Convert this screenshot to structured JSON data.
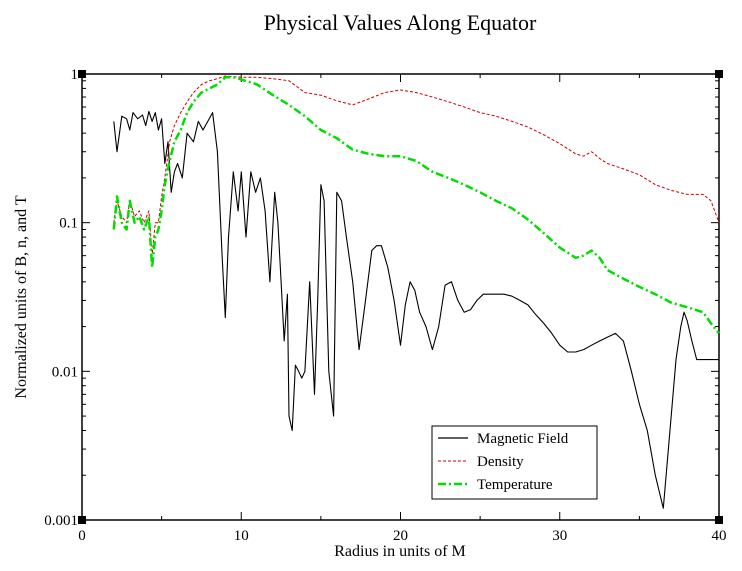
{
  "chart_data": {
    "type": "line",
    "title": "Physical Values Along Equator",
    "xlabel": "Radius in units of M",
    "ylabel": "Normalized units of B, n, and T",
    "xlim": [
      0,
      40
    ],
    "ylim": [
      0.001,
      1
    ],
    "yscale": "log",
    "x_ticks": [
      0,
      10,
      20,
      30,
      40
    ],
    "x_tick_labels": [
      "0",
      "10",
      "20",
      "30",
      "40"
    ],
    "y_ticks": [
      0.001,
      0.01,
      0.1,
      1
    ],
    "y_tick_labels": [
      "0.001",
      "0.01",
      "0.1",
      "1"
    ],
    "legend_position": "bottom-right",
    "series": [
      {
        "name": "Magnetic Field",
        "color": "#000000",
        "style": "solid",
        "x": [
          2.0,
          2.2,
          2.5,
          2.8,
          3.0,
          3.2,
          3.5,
          3.8,
          4.0,
          4.2,
          4.4,
          4.6,
          4.8,
          5.0,
          5.2,
          5.4,
          5.6,
          5.8,
          6.0,
          6.3,
          6.6,
          7.0,
          7.3,
          7.6,
          7.9,
          8.2,
          8.5,
          8.8,
          9.0,
          9.2,
          9.5,
          9.8,
          10.0,
          10.3,
          10.6,
          10.9,
          11.2,
          11.5,
          11.8,
          12.1,
          12.3,
          12.5,
          12.7,
          12.9,
          13.0,
          13.2,
          13.4,
          13.6,
          13.8,
          14.0,
          14.3,
          14.6,
          14.8,
          15.0,
          15.2,
          15.5,
          15.8,
          16.0,
          16.3,
          16.6,
          17.0,
          17.4,
          17.8,
          18.2,
          18.5,
          18.8,
          19.2,
          19.6,
          20.0,
          20.3,
          20.6,
          20.9,
          21.2,
          21.6,
          22.0,
          22.4,
          22.8,
          23.2,
          23.6,
          24.0,
          24.4,
          24.8,
          25.2,
          25.6,
          26.0,
          26.5,
          27.0,
          27.5,
          28.0,
          28.5,
          29.0,
          29.5,
          30.0,
          30.5,
          31.0,
          31.5,
          32.0,
          32.5,
          33.0,
          33.5,
          34.0,
          34.5,
          35.0,
          35.5,
          36.0,
          36.5,
          37.0,
          37.3,
          37.6,
          37.8,
          38.0,
          38.3,
          38.6,
          39.0,
          39.3,
          39.6,
          40.0
        ],
        "y": [
          0.48,
          0.3,
          0.52,
          0.5,
          0.42,
          0.55,
          0.5,
          0.53,
          0.45,
          0.56,
          0.48,
          0.55,
          0.42,
          0.5,
          0.25,
          0.35,
          0.16,
          0.22,
          0.25,
          0.2,
          0.4,
          0.35,
          0.48,
          0.42,
          0.48,
          0.55,
          0.3,
          0.06,
          0.023,
          0.08,
          0.22,
          0.12,
          0.22,
          0.08,
          0.22,
          0.16,
          0.2,
          0.12,
          0.04,
          0.16,
          0.1,
          0.04,
          0.016,
          0.033,
          0.005,
          0.004,
          0.011,
          0.01,
          0.009,
          0.01,
          0.04,
          0.007,
          0.03,
          0.18,
          0.14,
          0.01,
          0.005,
          0.16,
          0.14,
          0.08,
          0.04,
          0.014,
          0.03,
          0.065,
          0.07,
          0.07,
          0.05,
          0.03,
          0.015,
          0.028,
          0.04,
          0.035,
          0.025,
          0.02,
          0.014,
          0.02,
          0.038,
          0.04,
          0.03,
          0.025,
          0.026,
          0.03,
          0.033,
          0.033,
          0.033,
          0.033,
          0.032,
          0.03,
          0.028,
          0.024,
          0.021,
          0.018,
          0.015,
          0.0135,
          0.0135,
          0.014,
          0.015,
          0.016,
          0.017,
          0.018,
          0.016,
          0.01,
          0.006,
          0.004,
          0.002,
          0.0012,
          0.005,
          0.012,
          0.02,
          0.025,
          0.022,
          0.016,
          0.012,
          0.012,
          0.012,
          0.012,
          0.012
        ]
      },
      {
        "name": "Density",
        "color": "#cc0000",
        "style": "dashed",
        "x": [
          2.0,
          2.2,
          2.5,
          2.8,
          3.0,
          3.3,
          3.6,
          3.9,
          4.2,
          4.4,
          4.6,
          4.8,
          5.0,
          5.2,
          5.5,
          5.8,
          6.2,
          6.6,
          7.0,
          7.5,
          8.0,
          8.5,
          9.0,
          9.5,
          10.0,
          11.0,
          12.0,
          13.0,
          14.0,
          15.0,
          16.0,
          17.0,
          18.0,
          19.0,
          20.0,
          21.0,
          22.0,
          23.0,
          24.0,
          25.0,
          26.0,
          27.0,
          28.0,
          29.0,
          30.0,
          31.0,
          31.5,
          32.0,
          32.5,
          33.0,
          34.0,
          35.0,
          36.0,
          37.0,
          38.0,
          39.0,
          39.5,
          40.0
        ],
        "y": [
          0.1,
          0.14,
          0.11,
          0.1,
          0.14,
          0.11,
          0.12,
          0.1,
          0.12,
          0.06,
          0.1,
          0.1,
          0.15,
          0.2,
          0.35,
          0.45,
          0.55,
          0.65,
          0.75,
          0.85,
          0.9,
          0.93,
          0.97,
          0.96,
          0.95,
          0.95,
          0.93,
          0.9,
          0.75,
          0.72,
          0.66,
          0.62,
          0.68,
          0.75,
          0.78,
          0.75,
          0.7,
          0.65,
          0.6,
          0.55,
          0.52,
          0.48,
          0.44,
          0.39,
          0.34,
          0.29,
          0.28,
          0.3,
          0.27,
          0.25,
          0.23,
          0.21,
          0.18,
          0.165,
          0.155,
          0.155,
          0.14,
          0.1
        ]
      },
      {
        "name": "Temperature",
        "color": "#00dd00",
        "style": "dash-dot",
        "x": [
          2.0,
          2.2,
          2.5,
          2.8,
          3.0,
          3.3,
          3.6,
          3.9,
          4.2,
          4.4,
          4.6,
          4.8,
          5.0,
          5.2,
          5.5,
          5.8,
          6.2,
          6.6,
          7.0,
          7.5,
          8.0,
          8.5,
          9.0,
          9.5,
          10.0,
          11.0,
          12.0,
          13.0,
          14.0,
          15.0,
          16.0,
          17.0,
          18.0,
          19.0,
          20.0,
          21.0,
          22.0,
          23.0,
          24.0,
          25.0,
          26.0,
          27.0,
          28.0,
          29.0,
          30.0,
          31.0,
          31.5,
          32.0,
          32.5,
          33.0,
          34.0,
          35.0,
          36.0,
          37.0,
          38.0,
          39.0,
          39.5,
          40.0
        ],
        "y": [
          0.09,
          0.15,
          0.1,
          0.09,
          0.14,
          0.1,
          0.11,
          0.09,
          0.11,
          0.05,
          0.08,
          0.09,
          0.12,
          0.18,
          0.26,
          0.35,
          0.42,
          0.55,
          0.65,
          0.75,
          0.8,
          0.85,
          0.95,
          0.95,
          0.92,
          0.85,
          0.72,
          0.62,
          0.52,
          0.42,
          0.37,
          0.31,
          0.29,
          0.28,
          0.28,
          0.26,
          0.22,
          0.2,
          0.18,
          0.16,
          0.14,
          0.125,
          0.105,
          0.085,
          0.068,
          0.058,
          0.06,
          0.065,
          0.058,
          0.048,
          0.042,
          0.037,
          0.033,
          0.029,
          0.027,
          0.025,
          0.021,
          0.018
        ]
      }
    ]
  }
}
